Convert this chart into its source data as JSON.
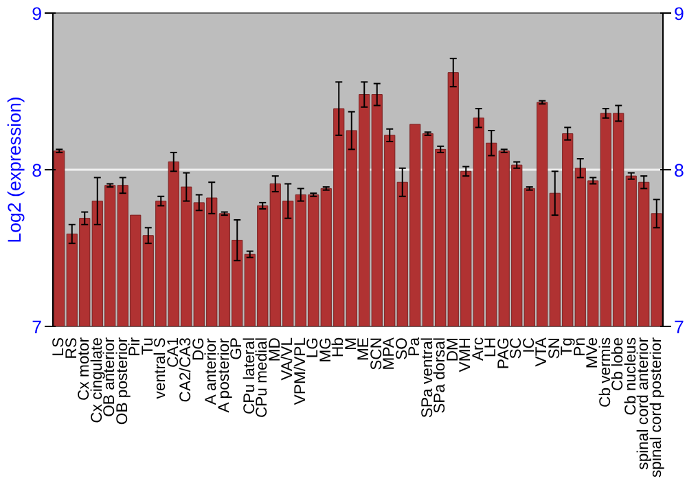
{
  "chart_data": {
    "type": "bar",
    "ylabel": "Log2 (expression)",
    "categories": [
      "LS",
      "RS",
      "Cx motor",
      "Cx cingulate",
      "OB anterior",
      "OB posterior",
      "Pir",
      "Tu",
      "ventral S",
      "CA1",
      "CA2/CA3",
      "DG",
      "A anterior",
      "A posterior",
      "GP",
      "CPu lateral",
      "CPu medial",
      "MD",
      "VA/VL",
      "VPM/VPL",
      "LG",
      "MG",
      "Hb",
      "M",
      "ME",
      "SCN",
      "MPA",
      "SO",
      "Pa",
      "SPa ventral",
      "SPa dorsal",
      "DM",
      "VMH",
      "Arc",
      "LH",
      "PAG",
      "SC",
      "IC",
      "VTA",
      "SN",
      "Tg",
      "Pn",
      "MVe",
      "Cb vermis",
      "Cb lobe",
      "Cb nucleus",
      "spinal cord anterior",
      "spinal cord posterior"
    ],
    "values": [
      8.12,
      7.59,
      7.69,
      7.8,
      7.9,
      7.9,
      7.71,
      7.58,
      7.8,
      8.05,
      7.89,
      7.79,
      7.82,
      7.72,
      7.55,
      7.46,
      7.77,
      7.91,
      7.8,
      7.84,
      7.84,
      7.88,
      8.39,
      8.25,
      8.48,
      8.48,
      8.22,
      7.92,
      8.29,
      8.23,
      8.13,
      8.62,
      7.99,
      8.33,
      8.17,
      8.12,
      8.03,
      7.88,
      8.43,
      7.85,
      8.23,
      8.01,
      7.93,
      8.36,
      8.36,
      7.96,
      7.92,
      7.72
    ],
    "errors": [
      0.01,
      0.06,
      0.04,
      0.15,
      0.01,
      0.05,
      null,
      0.05,
      0.03,
      0.06,
      0.09,
      0.05,
      0.1,
      0.01,
      0.13,
      0.02,
      0.02,
      0.05,
      0.11,
      0.04,
      0.01,
      0.01,
      0.17,
      0.12,
      0.08,
      0.07,
      0.04,
      0.09,
      null,
      0.01,
      0.02,
      0.09,
      0.03,
      0.06,
      0.08,
      0.01,
      0.02,
      0.01,
      0.01,
      0.14,
      0.04,
      0.06,
      0.02,
      0.03,
      0.05,
      0.02,
      0.04,
      0.09
    ],
    "color": "#b03232",
    "ylim": [
      7,
      9
    ],
    "yticks": [
      7,
      8,
      9
    ],
    "y2lim": [
      7,
      9
    ],
    "y2ticks": [
      7,
      8,
      9
    ],
    "grid": "y"
  }
}
